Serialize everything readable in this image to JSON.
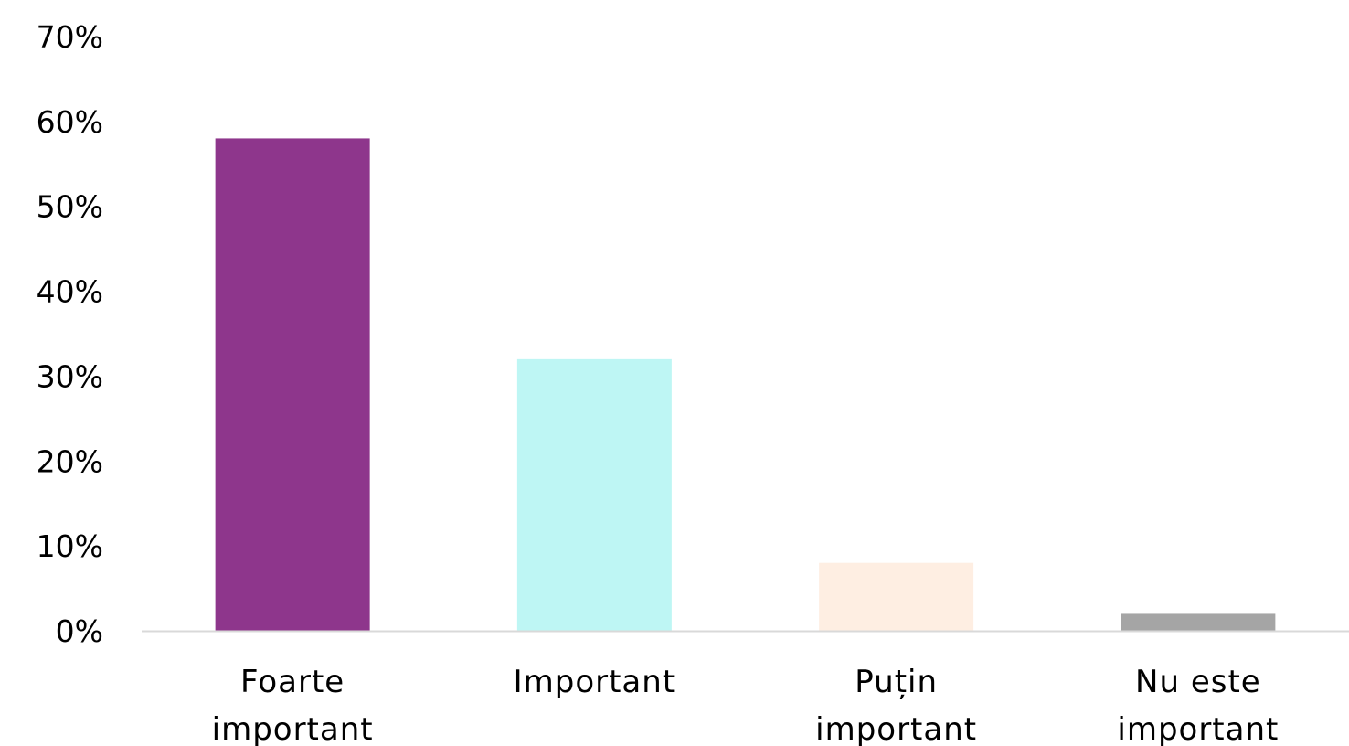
{
  "chart_data": {
    "type": "bar",
    "categories": [
      [
        "Foarte",
        "important"
      ],
      [
        "Important"
      ],
      [
        "Puțin",
        "important"
      ],
      [
        "Nu este",
        "important"
      ]
    ],
    "values": [
      58,
      32,
      8,
      2
    ],
    "colors": [
      "#8E368C",
      "#BEF6F4",
      "#FEEEE2",
      "#A5A5A5"
    ],
    "yticks": [
      "0%",
      "10%",
      "20%",
      "30%",
      "40%",
      "50%",
      "60%",
      "70%"
    ],
    "ylim": [
      0,
      70
    ],
    "grid": false,
    "baseline_color": "#D9D9D9"
  }
}
